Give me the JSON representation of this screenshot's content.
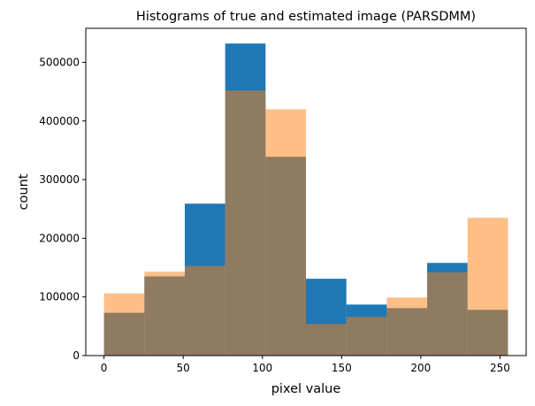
{
  "chart_data": {
    "type": "bar",
    "title": "Histograms of true and estimated image (PARSDMM)",
    "xlabel": "pixel value",
    "ylabel": "count",
    "xlim": [
      -11.5,
      266.5
    ],
    "ylim": [
      0,
      558000
    ],
    "xticks": [
      0,
      50,
      100,
      150,
      200,
      250
    ],
    "yticks": [
      0,
      100000,
      200000,
      300000,
      400000,
      500000
    ],
    "bins": [
      [
        0,
        25.5
      ],
      [
        25.5,
        51
      ],
      [
        51,
        76.5
      ],
      [
        76.5,
        102
      ],
      [
        102,
        127.5
      ],
      [
        127.5,
        153
      ],
      [
        153,
        178.5
      ],
      [
        178.5,
        204
      ],
      [
        204,
        229.5
      ],
      [
        229.5,
        255
      ]
    ],
    "series": [
      {
        "values": [
          73000,
          135000,
          259000,
          532000,
          339000,
          131000,
          87000,
          81000,
          158000,
          78000
        ],
        "color": "#1f77b4",
        "opacity": 1.0
      },
      {
        "values": [
          106000,
          143000,
          153000,
          452000,
          420000,
          54000,
          66000,
          99000,
          142000,
          235000
        ],
        "color": "#ff7f0e",
        "opacity": 0.5
      }
    ],
    "grid": false,
    "legend": "none"
  }
}
